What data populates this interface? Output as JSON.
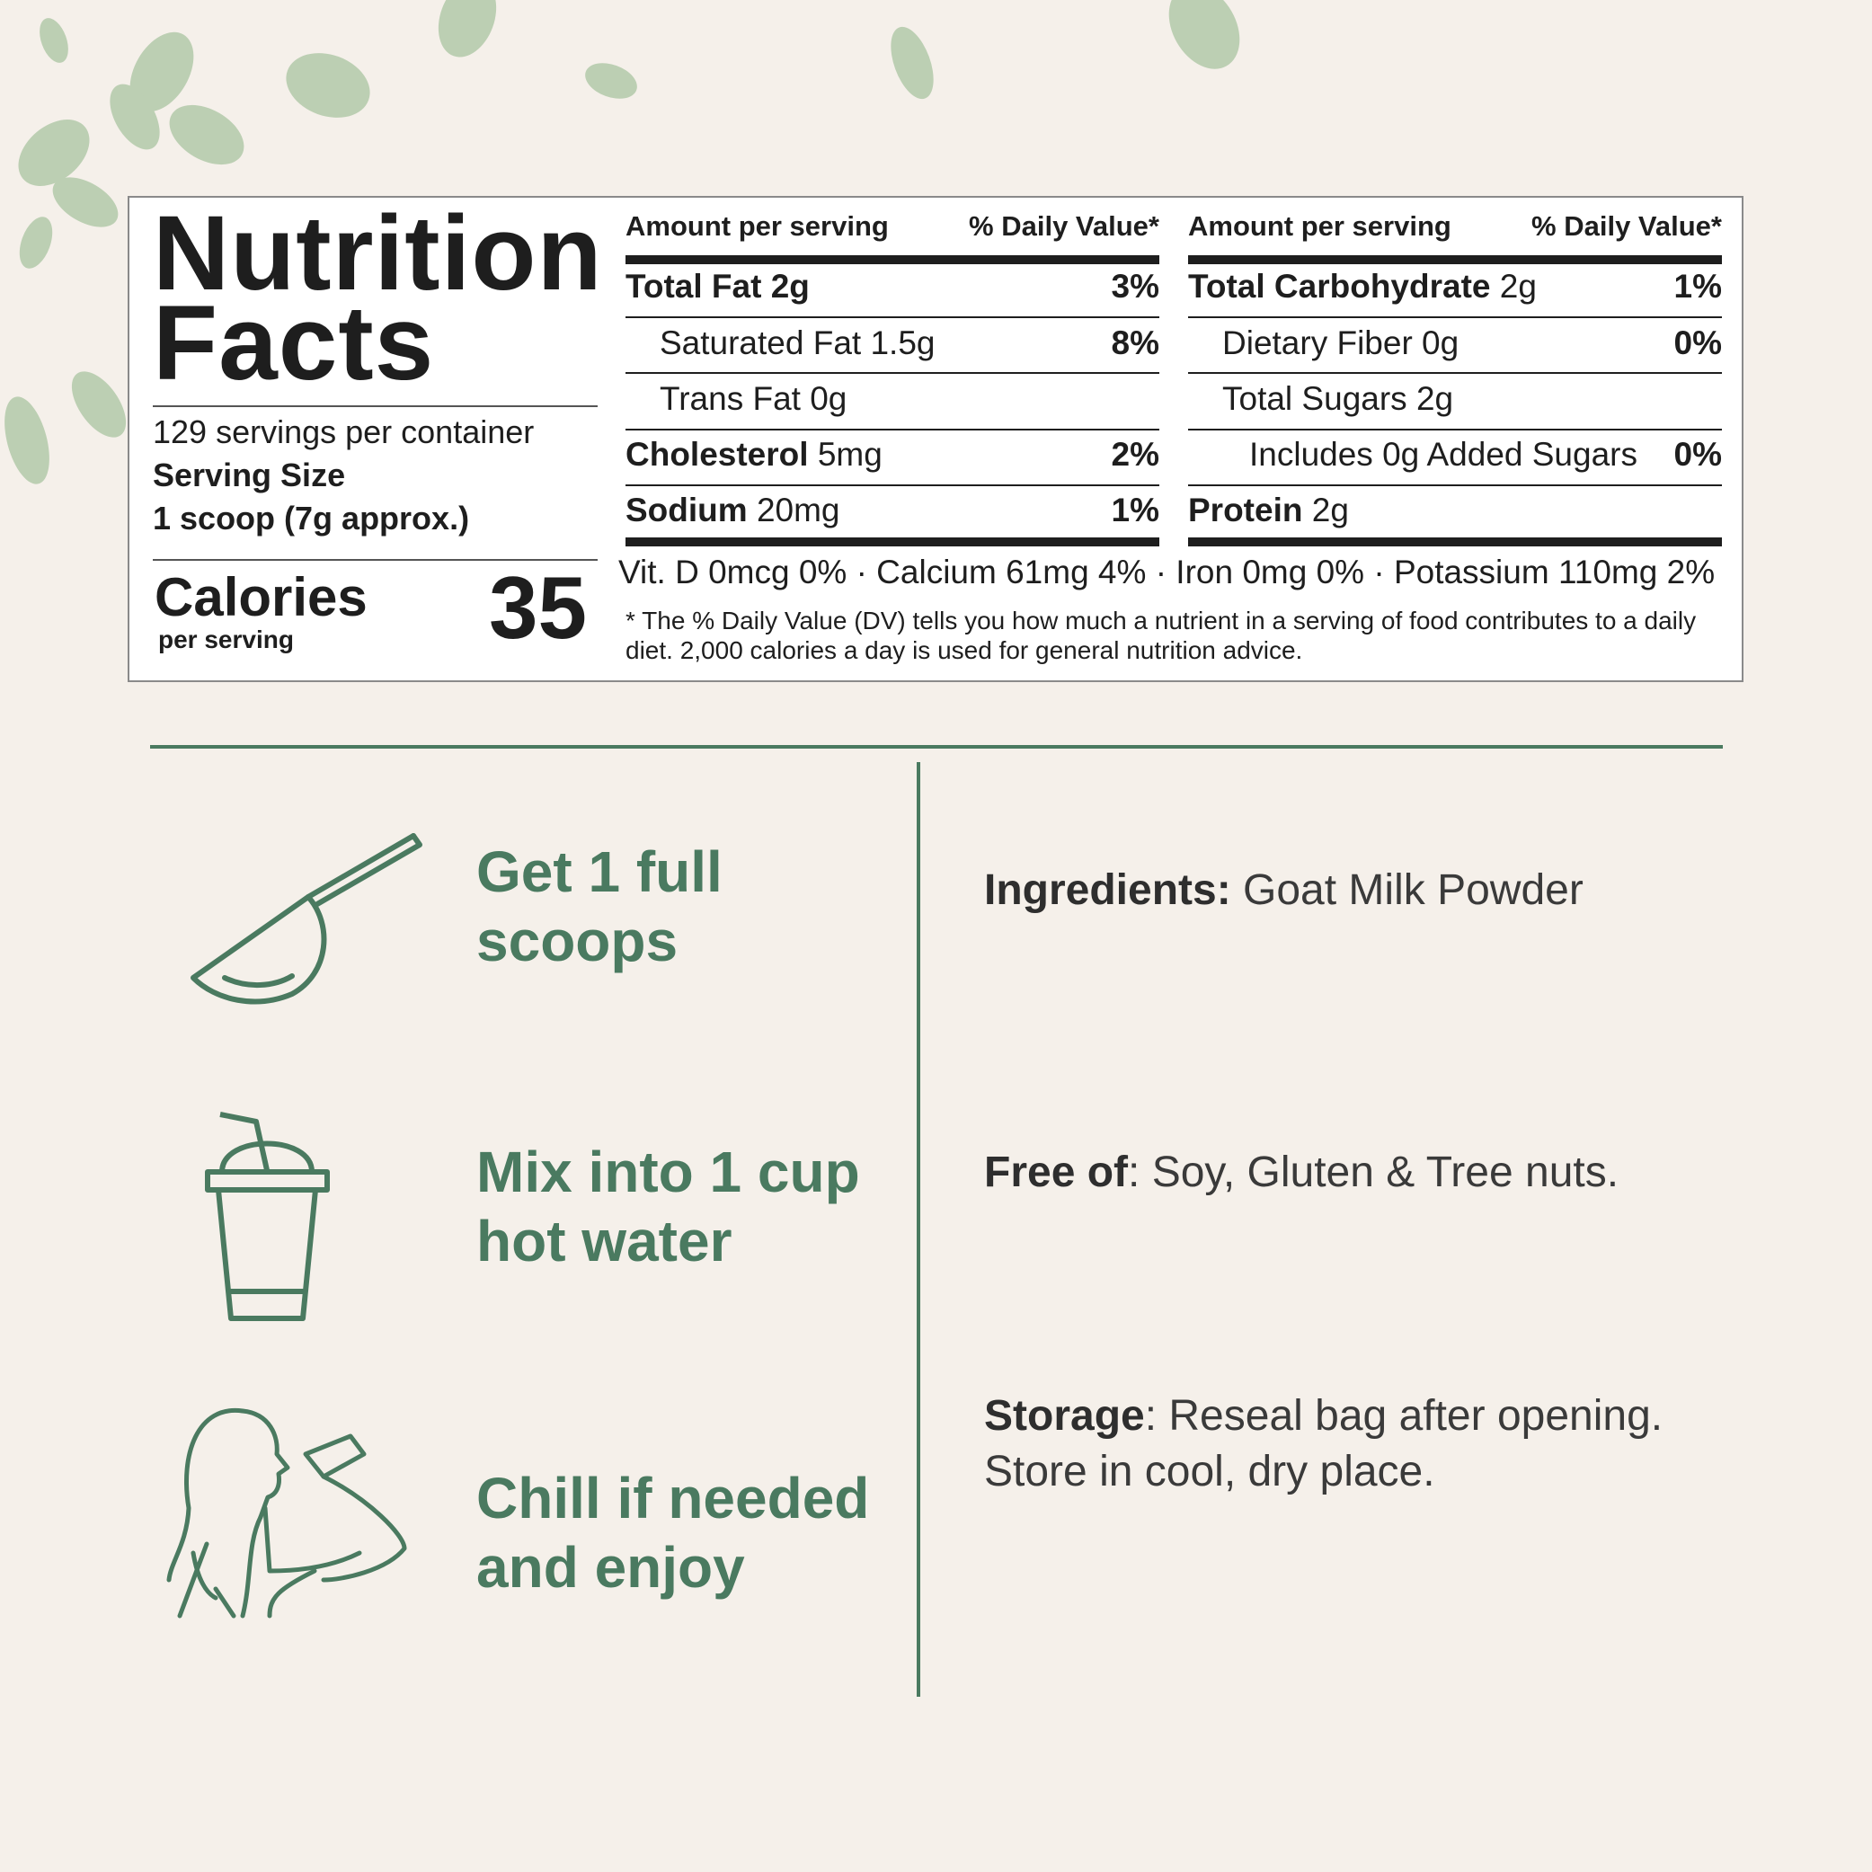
{
  "nutrition": {
    "title_line1": "Nutrition",
    "title_line2": "Facts",
    "servings": "129 servings per container",
    "serving_size_label": "Serving Size",
    "serving_size_value": "1 scoop (7g approx.)",
    "calories_label": "Calories",
    "calories_sub": "per serving",
    "calories_value": "35",
    "header_amount": "Amount per serving",
    "header_dv": "% Daily Value*",
    "left_rows": [
      {
        "name_bold": "Total Fat 2g",
        "name": "",
        "dv": "3%",
        "indent": 0
      },
      {
        "name_bold": "",
        "name": "Saturated Fat 1.5g",
        "dv": "8%",
        "indent": 1
      },
      {
        "name_bold": "",
        "name": "Trans Fat 0g",
        "dv": "",
        "indent": 1
      },
      {
        "name_bold": "Cholesterol",
        "name": " 5mg",
        "dv": "2%",
        "indent": 0
      },
      {
        "name_bold": "Sodium",
        "name": " 20mg",
        "dv": "1%",
        "indent": 0
      }
    ],
    "right_rows": [
      {
        "name_bold": "Total Carbohydrate",
        "name": " 2g",
        "dv": "1%",
        "indent": 0
      },
      {
        "name_bold": "",
        "name": "Dietary Fiber 0g",
        "dv": "0%",
        "indent": 1
      },
      {
        "name_bold": "",
        "name": "Total Sugars 2g",
        "dv": "",
        "indent": 1
      },
      {
        "name_bold": "",
        "name": "Includes 0g Added Sugars",
        "dv": "0%",
        "indent": 2
      },
      {
        "name_bold": "Protein",
        "name": " 2g",
        "dv": "",
        "indent": 0
      }
    ],
    "vitamins": "Vit. D 0mcg 0% · Calcium 61mg 4% · Iron 0mg 0% · Potassium 110mg 2%",
    "footnote": "* The % Daily Value (DV) tells you how much a nutrient in a serving of food contributes to a daily diet. 2,000 calories a day is used for general nutrition advice."
  },
  "steps": [
    {
      "icon": "scoop-icon",
      "line1": "Get 1 full",
      "line2": "scoops"
    },
    {
      "icon": "cup-with-straw-icon",
      "line1": "Mix into 1 cup",
      "line2": "hot water"
    },
    {
      "icon": "woman-drinking-icon",
      "line1": "Chill if needed",
      "line2": "and enjoy"
    }
  ],
  "info": {
    "ingredients_label": "Ingredients:",
    "ingredients_value": " Goat Milk Powder",
    "free_label": "Free of",
    "free_value": ": Soy, Gluten & Tree nuts.",
    "storage_label": "Storage",
    "storage_value_line1": ": Reseal bag after opening.",
    "storage_value_line2": "Store in cool, dry place."
  },
  "colors": {
    "accent": "#4a7a60",
    "background": "#f5f0ea",
    "text": "#1e1e1e"
  }
}
